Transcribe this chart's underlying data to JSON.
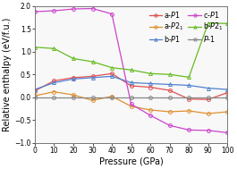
{
  "title": "",
  "xlabel": "Pressure (GPa)",
  "ylabel": "Relative enthalpy (eV/f.u.)",
  "xlim": [
    0,
    100
  ],
  "ylim": [
    -1.0,
    2.0
  ],
  "xticks": [
    0,
    10,
    20,
    30,
    40,
    50,
    60,
    70,
    80,
    90,
    100
  ],
  "yticks": [
    -1.0,
    -0.5,
    0.0,
    0.5,
    1.0,
    1.5,
    2.0
  ],
  "series": [
    {
      "label": "a-$P$1",
      "color": "#e05050",
      "marker": "o",
      "x": [
        0,
        10,
        20,
        30,
        40,
        50,
        60,
        70,
        80,
        90,
        100
      ],
      "y": [
        0.14,
        0.36,
        0.43,
        0.46,
        0.52,
        0.25,
        0.22,
        0.15,
        -0.04,
        -0.05,
        0.1
      ]
    },
    {
      "label": "a-$P$2$_1$",
      "color": "#e09030",
      "marker": "o",
      "x": [
        0,
        10,
        20,
        30,
        40,
        50,
        60,
        70,
        80,
        90,
        100
      ],
      "y": [
        0.03,
        0.12,
        0.05,
        -0.07,
        0.02,
        -0.2,
        -0.28,
        -0.32,
        -0.3,
        -0.36,
        -0.32
      ]
    },
    {
      "label": "b-$P$1",
      "color": "#5080d0",
      "marker": "^",
      "x": [
        0,
        10,
        20,
        30,
        40,
        50,
        60,
        70,
        80,
        90,
        100
      ],
      "y": [
        0.17,
        0.32,
        0.4,
        0.43,
        0.46,
        0.32,
        0.3,
        0.28,
        0.26,
        0.2,
        0.17
      ]
    },
    {
      "label": "c-$P$1",
      "color": "#cc44cc",
      "marker": "o",
      "x": [
        0,
        10,
        20,
        30,
        40,
        50,
        60,
        70,
        80,
        90,
        100
      ],
      "y": [
        1.88,
        1.9,
        1.94,
        1.95,
        1.83,
        -0.15,
        -0.4,
        -0.62,
        -0.72,
        -0.73,
        -0.78
      ]
    },
    {
      "label": "b-$P$2$_1$",
      "color": "#66bb22",
      "marker": "^",
      "x": [
        0,
        10,
        20,
        30,
        40,
        50,
        60,
        70,
        80,
        90,
        100
      ],
      "y": [
        1.1,
        1.07,
        0.85,
        0.78,
        0.65,
        0.6,
        0.52,
        0.5,
        0.44,
        1.63,
        1.62
      ]
    },
    {
      "label": "$P$-1",
      "color": "#888888",
      "marker": "o",
      "x": [
        0,
        10,
        20,
        30,
        40,
        50,
        60,
        70,
        80,
        90,
        100
      ],
      "y": [
        0.0,
        0.0,
        0.0,
        0.0,
        0.0,
        0.0,
        0.0,
        0.0,
        0.0,
        0.0,
        0.0
      ]
    }
  ],
  "background_color": "#ffffff",
  "plot_bg_color": "#f8f8f8",
  "legend_fontsize": 5.8,
  "axis_fontsize": 7.0,
  "tick_fontsize": 5.5
}
